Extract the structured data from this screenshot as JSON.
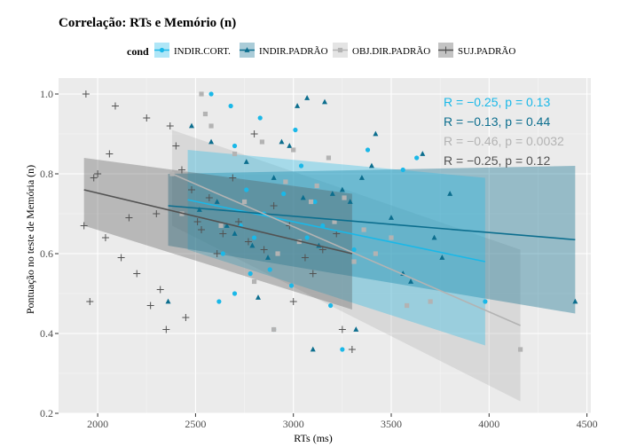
{
  "chart_data": {
    "type": "scatter",
    "title": "Correlação: RTs e Memório (n)",
    "xlabel": "RTs (ms)",
    "ylabel": "Pontuação no teste de Memória (n)",
    "xlim": [
      1800,
      4520
    ],
    "ylim": [
      0.2,
      1.04
    ],
    "xticks": [
      2000,
      2500,
      3000,
      3500,
      4000,
      4500
    ],
    "yticks": [
      0.2,
      0.4,
      0.6,
      0.8,
      1.0
    ],
    "xtick_labels": [
      "2000",
      "2500",
      "3000",
      "3500",
      "4000",
      "4500"
    ],
    "ytick_labels": [
      "0.2",
      "0.4",
      "0.6",
      "0.8",
      "1.0"
    ],
    "grid": true,
    "legend": {
      "title": "cond",
      "position": "top",
      "entries": [
        "INDIR.CORT.",
        "INDIR.PADRÃO",
        "OBJ.DIR.PADRÃO",
        "SUJ.PADRÃO"
      ]
    },
    "series": [
      {
        "name": "INDIR.CORT.",
        "color": "#1ab8e8",
        "marker": "circle",
        "x": [
          2580,
          2620,
          2640,
          2680,
          2700,
          2700,
          2730,
          2760,
          2780,
          2800,
          2830,
          2850,
          2880,
          2900,
          2950,
          2990,
          3010,
          3040,
          3070,
          3110,
          3150,
          3190,
          3250,
          3310,
          3380,
          3560,
          3630,
          3980
        ],
        "y": [
          1.0,
          0.48,
          0.6,
          0.97,
          0.87,
          0.5,
          0.67,
          0.76,
          0.55,
          0.64,
          0.94,
          0.7,
          0.56,
          0.41,
          0.75,
          0.52,
          0.91,
          0.82,
          0.64,
          0.73,
          0.67,
          0.47,
          0.36,
          0.61,
          0.86,
          0.81,
          0.84,
          0.48
        ]
      },
      {
        "name": "INDIR.PADRÃO",
        "color": "#0c6e8e",
        "marker": "triangle",
        "x": [
          2360,
          2480,
          2520,
          2580,
          2610,
          2660,
          2700,
          2760,
          2790,
          2820,
          2870,
          2900,
          2940,
          2980,
          3020,
          3050,
          3070,
          3100,
          3130,
          3160,
          3200,
          3250,
          3290,
          3320,
          3350,
          3400,
          3420,
          3500,
          3560,
          3600,
          3660,
          3720,
          3760,
          3800,
          4440
        ],
        "y": [
          0.48,
          0.92,
          0.71,
          0.88,
          0.73,
          0.67,
          0.65,
          0.83,
          0.62,
          0.49,
          0.59,
          0.79,
          0.88,
          0.87,
          0.97,
          0.74,
          0.99,
          0.36,
          0.62,
          0.98,
          0.75,
          0.76,
          0.73,
          0.41,
          0.79,
          0.82,
          0.9,
          0.69,
          0.55,
          0.53,
          0.85,
          0.64,
          0.59,
          0.75,
          0.48
        ]
      },
      {
        "name": "OBJ.DIR.PADRÃO",
        "color": "#b3b3b3",
        "marker": "square",
        "x": [
          2380,
          2430,
          2530,
          2550,
          2580,
          2630,
          2700,
          2750,
          2800,
          2840,
          2900,
          2920,
          2960,
          3000,
          3030,
          3090,
          3120,
          3180,
          3210,
          3260,
          3310,
          3360,
          3420,
          3500,
          3580,
          3700,
          4160
        ],
        "y": [
          0.8,
          0.7,
          1.0,
          0.95,
          0.92,
          0.67,
          0.85,
          0.73,
          0.53,
          0.88,
          0.41,
          0.6,
          0.78,
          0.86,
          0.63,
          0.73,
          0.77,
          0.84,
          0.68,
          0.74,
          0.58,
          0.66,
          0.6,
          0.64,
          0.47,
          0.48,
          0.36
        ]
      },
      {
        "name": "SUJ.PADRÃO",
        "color": "#525252",
        "marker": "cross",
        "x": [
          1930,
          1940,
          1960,
          1980,
          2000,
          2040,
          2060,
          2090,
          2120,
          2160,
          2200,
          2250,
          2270,
          2300,
          2320,
          2350,
          2370,
          2400,
          2430,
          2450,
          2480,
          2510,
          2530,
          2570,
          2610,
          2640,
          2690,
          2720,
          2770,
          2800,
          2850,
          2900,
          2980,
          3000,
          3060,
          3100,
          3150,
          3220,
          3250,
          3300
        ],
        "y": [
          0.67,
          1.0,
          0.48,
          0.79,
          0.8,
          0.64,
          0.85,
          0.97,
          0.59,
          0.69,
          0.55,
          0.94,
          0.47,
          0.7,
          0.51,
          0.41,
          0.92,
          0.87,
          0.81,
          0.44,
          0.76,
          0.68,
          0.66,
          0.74,
          0.6,
          0.65,
          0.79,
          0.68,
          0.63,
          0.9,
          0.61,
          0.72,
          0.67,
          0.48,
          0.59,
          0.55,
          0.61,
          0.65,
          0.41,
          0.36
        ]
      }
    ],
    "regression": [
      {
        "series": "INDIR.CORT.",
        "x": [
          2460,
          3980
        ],
        "y": [
          0.735,
          0.58
        ],
        "ci_upper": [
          0.86,
          0.79
        ],
        "ci_lower": [
          0.61,
          0.37
        ],
        "color": "#1ab8e8",
        "label": "R = −0.25, p = 0.13"
      },
      {
        "series": "INDIR.PADRÃO",
        "x": [
          2360,
          4440
        ],
        "y": [
          0.72,
          0.635
        ],
        "ci_upper": [
          0.8,
          0.82
        ],
        "ci_lower": [
          0.62,
          0.45
        ],
        "color": "#0c6e8e",
        "label": "R = −0.13, p = 0.44"
      },
      {
        "series": "OBJ.DIR.PADRÃO",
        "x": [
          2380,
          4160
        ],
        "y": [
          0.8,
          0.42
        ],
        "ci_upper": [
          0.91,
          0.61
        ],
        "ci_lower": [
          0.67,
          0.23
        ],
        "color": "#b3b3b3",
        "label": "R = −0.46, p = 0.0032"
      },
      {
        "series": "SUJ.PADRÃO",
        "x": [
          1930,
          3300
        ],
        "y": [
          0.76,
          0.6
        ],
        "ci_upper": [
          0.84,
          0.75
        ],
        "ci_lower": [
          0.67,
          0.46
        ],
        "color": "#525252",
        "label": "R = −0.25, p = 0.12"
      }
    ]
  }
}
